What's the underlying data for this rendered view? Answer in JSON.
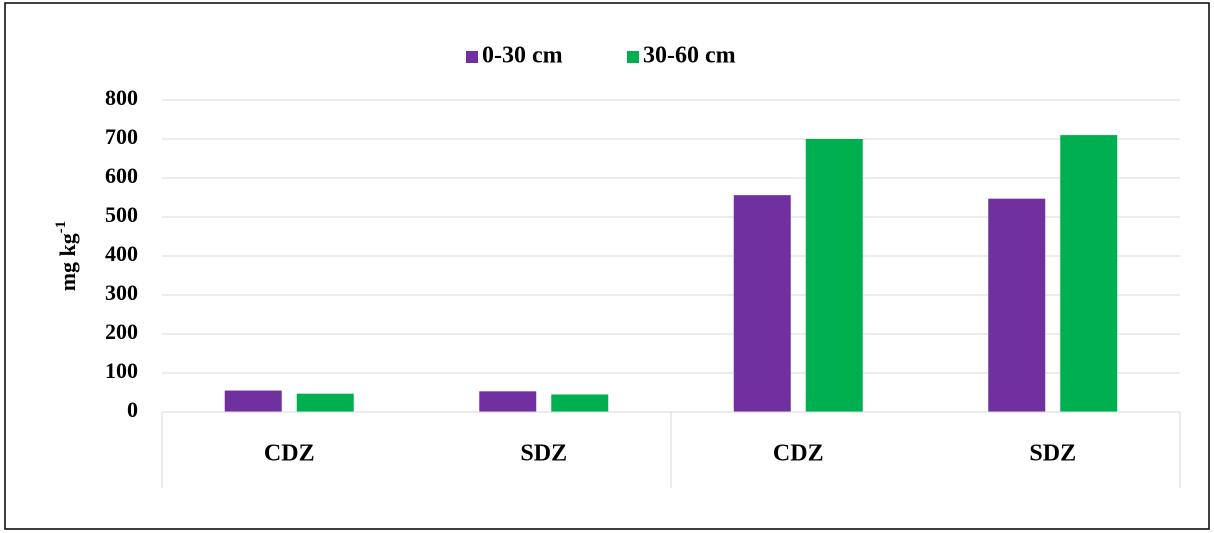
{
  "chart_data": {
    "type": "bar",
    "y_label": {
      "base": "mg kg",
      "sup": "-1"
    },
    "categories": [
      "CDZ",
      "SDZ",
      "CDZ",
      "SDZ"
    ],
    "series": [
      {
        "name": "0-30 cm",
        "color": "#7030a0",
        "values": [
          55,
          53,
          556,
          547
        ]
      },
      {
        "name": "30-60 cm",
        "color": "#00b050",
        "values": [
          47,
          45,
          700,
          710
        ]
      }
    ],
    "ylim": [
      0,
      800
    ],
    "yticks": [
      0,
      100,
      200,
      300,
      400,
      500,
      600,
      700,
      800
    ],
    "grid": true,
    "legend": "top"
  }
}
